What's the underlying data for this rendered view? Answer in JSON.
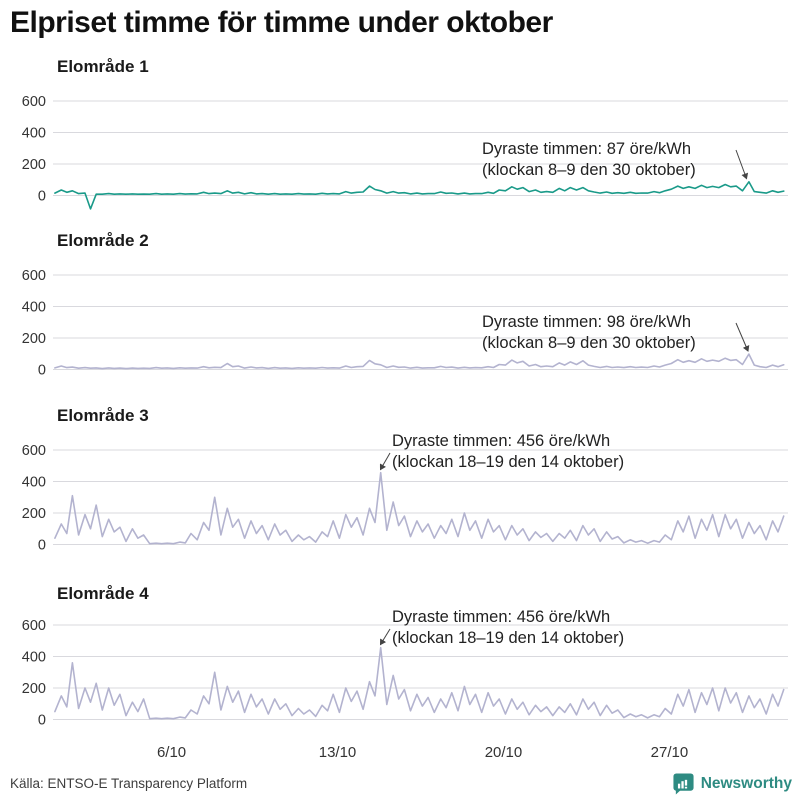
{
  "header": {
    "title": "Elpriset timme för timme under oktober"
  },
  "footer": {
    "source": "Källa: ENTSO-E Transparency Platform",
    "brand": "Newsworthy"
  },
  "colors": {
    "teal_line": "#1a9a89",
    "lavender_line": "#b3b3cf",
    "grid": "#d9d9de",
    "axis_text": "#333333",
    "annotation_text": "#222222",
    "arrow": "#444444",
    "brand_teal": "#2e8b82",
    "title_text": "#111111"
  },
  "x_axis": {
    "tick_labels": [
      "6/10",
      "13/10",
      "20/10",
      "27/10"
    ],
    "tick_days": [
      6,
      13,
      20,
      27
    ],
    "range_days": 31
  },
  "chart_data": [
    {
      "type": "line",
      "title": "Elområde 1",
      "unit": "öre/kWh",
      "color_key": "teal_line",
      "yticks": [
        0,
        200,
        400,
        600
      ],
      "ylim": [
        -100,
        650
      ],
      "samples_per_day": 4,
      "annotation": {
        "line1": "Dyraste timmen: 87 öre/kWh",
        "line2": "(klockan 8–9 den 30 oktober)",
        "max_value": 87,
        "max_hour": "8–9",
        "max_date": "30 oktober"
      },
      "values": [
        15,
        35,
        20,
        30,
        12,
        15,
        -85,
        8,
        8,
        12,
        8,
        10,
        8,
        10,
        8,
        9,
        8,
        12,
        8,
        10,
        8,
        12,
        9,
        11,
        10,
        20,
        12,
        15,
        12,
        30,
        15,
        20,
        10,
        18,
        10,
        12,
        8,
        12,
        8,
        10,
        8,
        12,
        9,
        10,
        8,
        14,
        10,
        12,
        10,
        25,
        15,
        20,
        22,
        60,
        38,
        30,
        15,
        25,
        15,
        18,
        10,
        15,
        10,
        12,
        12,
        22,
        14,
        16,
        10,
        15,
        10,
        12,
        12,
        20,
        14,
        35,
        30,
        55,
        40,
        50,
        25,
        35,
        20,
        25,
        20,
        45,
        30,
        50,
        35,
        50,
        30,
        22,
        15,
        22,
        14,
        18,
        14,
        20,
        14,
        16,
        15,
        25,
        18,
        30,
        40,
        60,
        45,
        55,
        45,
        65,
        50,
        58,
        50,
        70,
        55,
        60,
        30,
        87,
        25,
        20,
        15,
        30,
        20,
        28
      ]
    },
    {
      "type": "line",
      "title": "Elområde 2",
      "unit": "öre/kWh",
      "color_key": "lavender_line",
      "yticks": [
        0,
        200,
        400,
        600
      ],
      "ylim": [
        0,
        650
      ],
      "samples_per_day": 4,
      "annotation": {
        "line1": "Dyraste timmen: 98 öre/kWh",
        "line2": "(klockan 8–9 den 30 oktober)",
        "max_value": 98,
        "max_hour": "8–9",
        "max_date": "30 oktober"
      },
      "values": [
        10,
        22,
        12,
        15,
        8,
        12,
        8,
        10,
        6,
        10,
        7,
        9,
        6,
        9,
        7,
        8,
        7,
        12,
        8,
        10,
        7,
        11,
        8,
        10,
        9,
        18,
        11,
        14,
        12,
        38,
        18,
        22,
        9,
        16,
        10,
        12,
        7,
        12,
        8,
        10,
        7,
        11,
        8,
        10,
        8,
        13,
        9,
        11,
        9,
        22,
        13,
        18,
        20,
        58,
        36,
        30,
        13,
        22,
        14,
        16,
        9,
        14,
        9,
        11,
        11,
        20,
        13,
        15,
        9,
        14,
        10,
        12,
        11,
        18,
        13,
        32,
        28,
        60,
        42,
        52,
        22,
        32,
        18,
        22,
        18,
        42,
        28,
        48,
        32,
        55,
        28,
        20,
        13,
        20,
        13,
        16,
        12,
        18,
        13,
        15,
        13,
        22,
        16,
        28,
        38,
        62,
        46,
        56,
        46,
        68,
        52,
        60,
        52,
        72,
        58,
        62,
        32,
        98,
        28,
        18,
        13,
        28,
        18,
        30
      ]
    },
    {
      "type": "line",
      "title": "Elområde 3",
      "unit": "öre/kWh",
      "color_key": "lavender_line",
      "yticks": [
        0,
        200,
        400,
        600
      ],
      "ylim": [
        0,
        650
      ],
      "samples_per_day": 4,
      "annotation": {
        "line1": "Dyraste timmen: 456 öre/kWh",
        "line2": "(klockan 18–19 den 14 oktober)",
        "max_value": 456,
        "max_hour": "18–19",
        "max_date": "14 oktober"
      },
      "values": [
        40,
        130,
        70,
        310,
        60,
        190,
        100,
        250,
        50,
        160,
        80,
        110,
        20,
        100,
        40,
        60,
        5,
        8,
        5,
        8,
        5,
        15,
        10,
        70,
        30,
        140,
        90,
        300,
        60,
        230,
        110,
        160,
        40,
        150,
        70,
        120,
        30,
        130,
        60,
        90,
        20,
        60,
        30,
        50,
        15,
        80,
        50,
        150,
        40,
        190,
        110,
        170,
        60,
        230,
        140,
        456,
        90,
        270,
        120,
        180,
        50,
        150,
        80,
        130,
        40,
        120,
        70,
        160,
        50,
        200,
        90,
        150,
        40,
        160,
        80,
        120,
        30,
        120,
        60,
        100,
        25,
        80,
        45,
        70,
        20,
        70,
        40,
        90,
        25,
        120,
        60,
        100,
        20,
        80,
        35,
        50,
        10,
        30,
        15,
        25,
        8,
        25,
        15,
        60,
        30,
        150,
        80,
        180,
        40,
        160,
        90,
        190,
        50,
        190,
        100,
        160,
        40,
        140,
        70,
        120,
        30,
        150,
        80,
        180
      ]
    },
    {
      "type": "line",
      "title": "Elområde 4",
      "unit": "öre/kWh",
      "color_key": "lavender_line",
      "yticks": [
        0,
        200,
        400,
        600
      ],
      "ylim": [
        0,
        650
      ],
      "samples_per_day": 4,
      "annotation": {
        "line1": "Dyraste timmen: 456 öre/kWh",
        "line2": "(klockan 18–19 den 14 oktober)",
        "max_value": 456,
        "max_hour": "18–19",
        "max_date": "14 oktober"
      },
      "values": [
        50,
        150,
        80,
        360,
        70,
        200,
        110,
        230,
        60,
        200,
        90,
        160,
        25,
        110,
        50,
        130,
        5,
        8,
        5,
        8,
        5,
        15,
        10,
        60,
        35,
        150,
        100,
        300,
        60,
        210,
        110,
        180,
        45,
        160,
        80,
        130,
        35,
        130,
        65,
        100,
        25,
        70,
        35,
        60,
        20,
        90,
        55,
        160,
        45,
        200,
        115,
        180,
        65,
        240,
        150,
        456,
        95,
        280,
        130,
        190,
        55,
        160,
        85,
        140,
        45,
        130,
        75,
        170,
        55,
        210,
        95,
        160,
        45,
        170,
        85,
        130,
        35,
        130,
        65,
        110,
        30,
        90,
        50,
        80,
        25,
        80,
        45,
        100,
        30,
        130,
        65,
        110,
        25,
        90,
        40,
        60,
        12,
        35,
        18,
        30,
        10,
        30,
        18,
        70,
        35,
        160,
        85,
        190,
        45,
        170,
        95,
        200,
        55,
        200,
        105,
        170,
        45,
        150,
        75,
        130,
        35,
        160,
        85,
        190
      ]
    }
  ]
}
